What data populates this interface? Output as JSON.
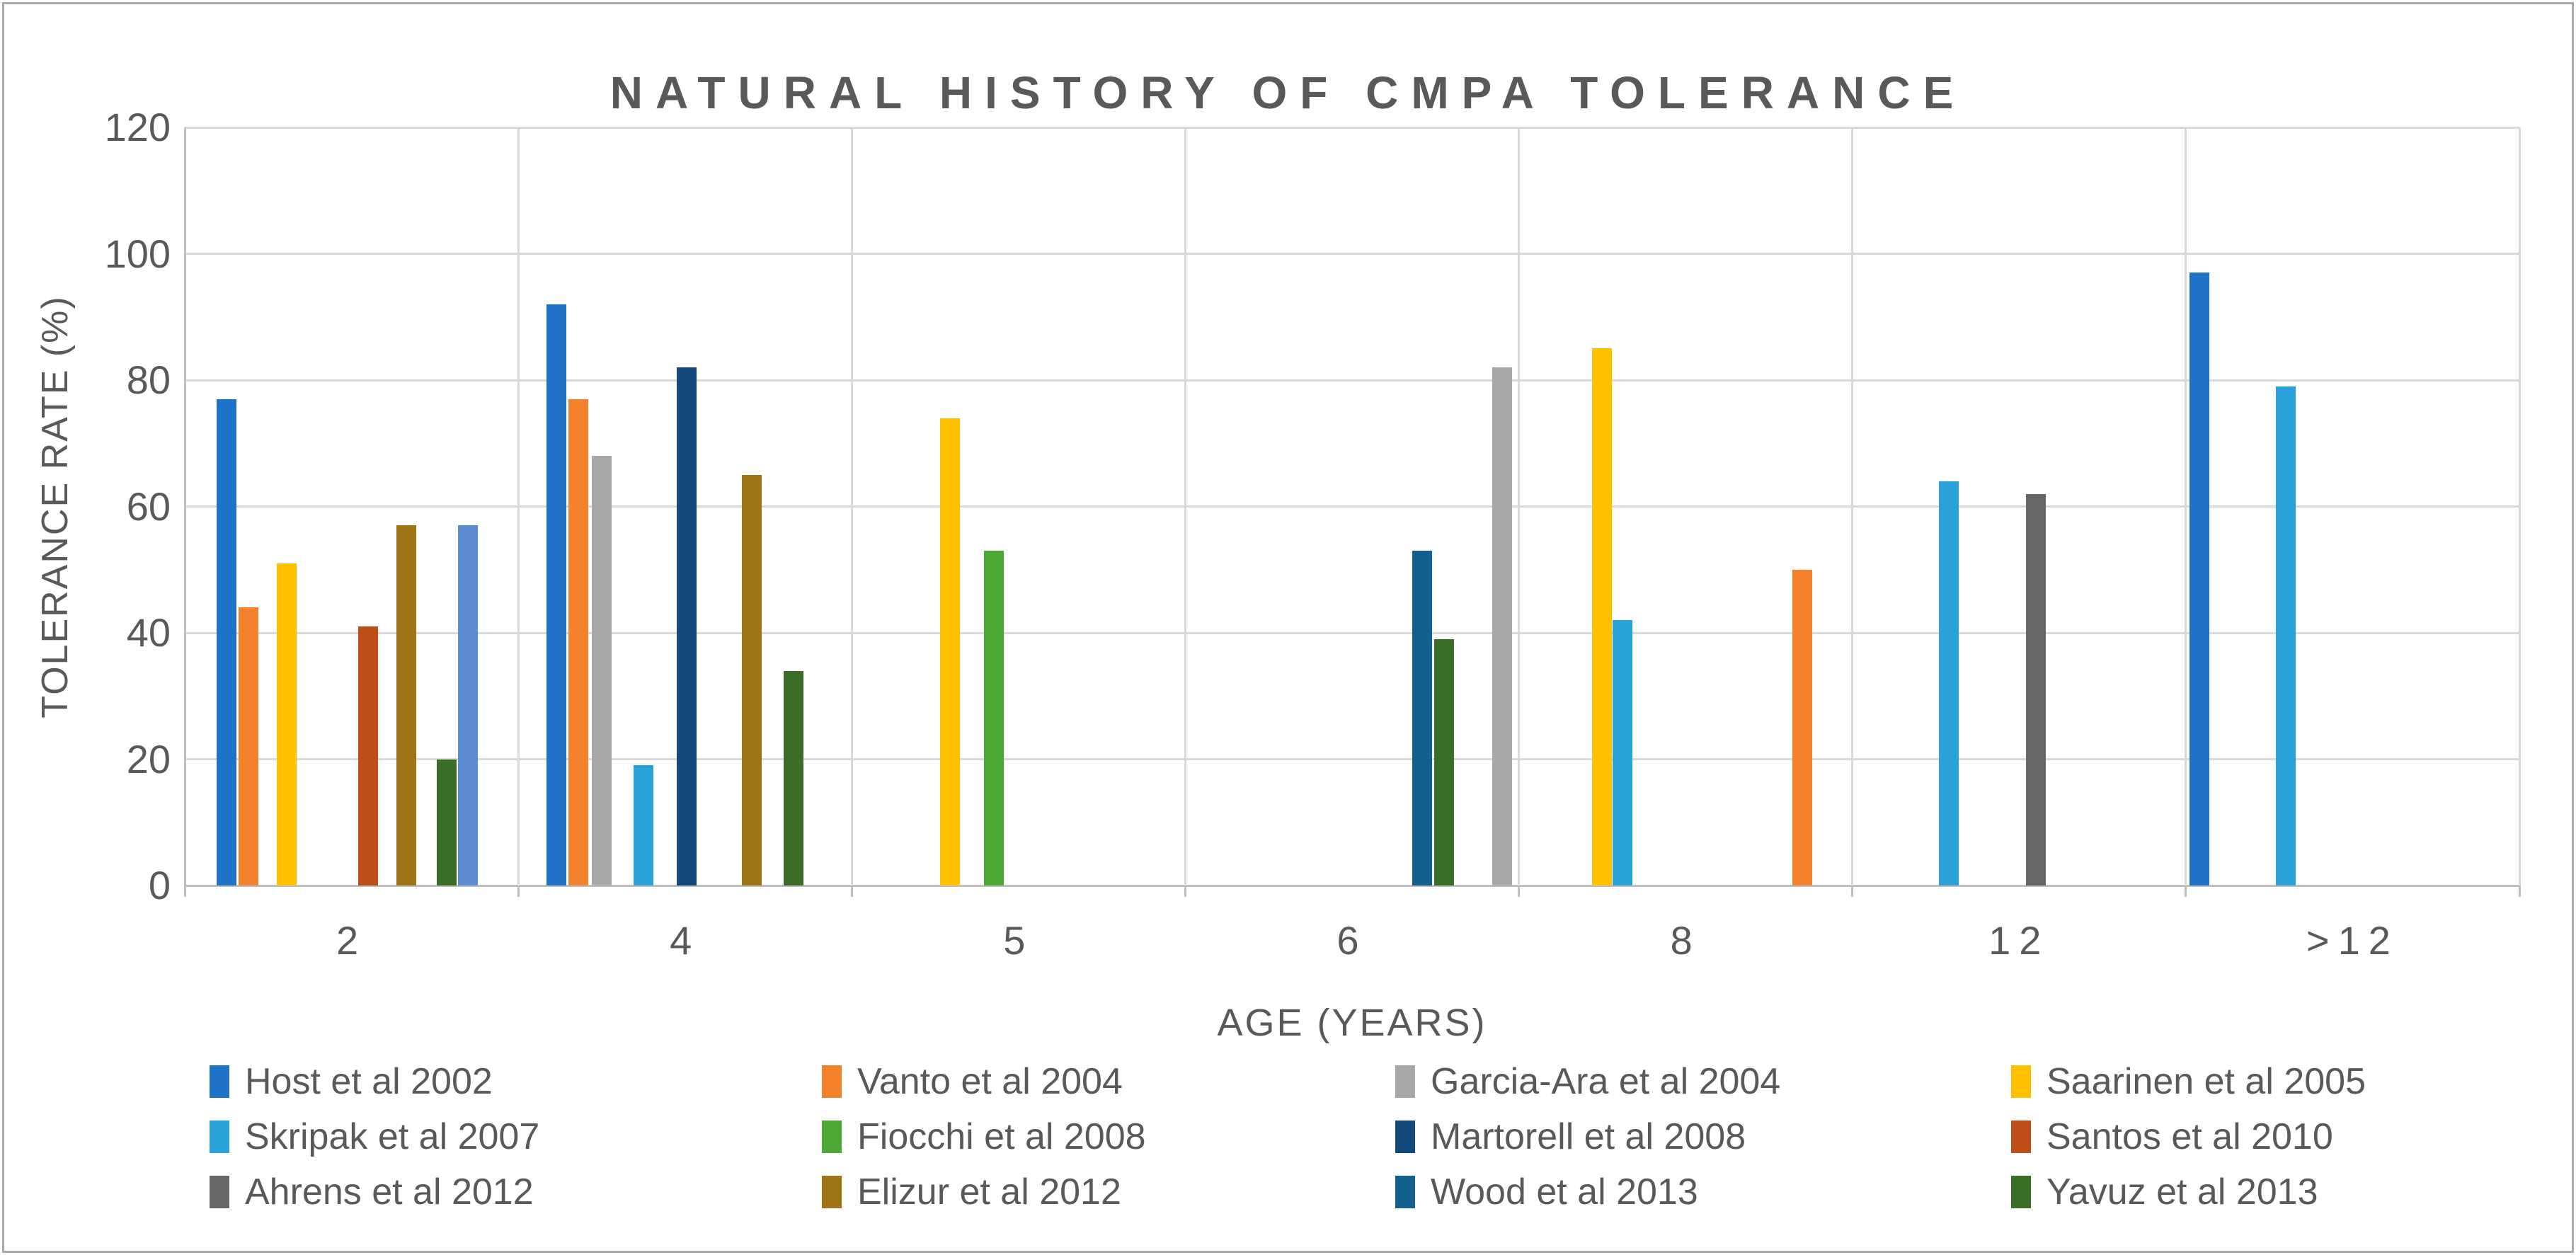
{
  "chart_data": {
    "type": "bar",
    "title": "NATURAL HISTORY OF CMPA TOLERANCE",
    "xlabel": "AGE (YEARS)",
    "ylabel": "TOLERANCE RATE (%)",
    "ylim": [
      0,
      120
    ],
    "yticks": [
      0,
      20,
      40,
      60,
      80,
      100,
      120
    ],
    "categories": [
      "2",
      "4",
      "5",
      "6",
      "8",
      "12",
      ">12"
    ],
    "grid": "on",
    "legend_position": "bottom",
    "colors": {
      "background": "#ffffff",
      "border": "#a9a9a9",
      "gridline": "#d9d9d9",
      "axis_line": "#bfbfbf",
      "text": "#595959"
    },
    "legend": [
      {
        "label": "Host et al 2002",
        "color": "#1f72c7"
      },
      {
        "label": "Vanto et al 2004",
        "color": "#f4812b"
      },
      {
        "label": "Garcia-Ara et al 2004",
        "color": "#a8a8a8"
      },
      {
        "label": "Saarinen et al 2005",
        "color": "#ffc000"
      },
      {
        "label": "Skripak et al 2007",
        "color": "#29a2da"
      },
      {
        "label": "Fiocchi et al 2008",
        "color": "#4ca834"
      },
      {
        "label": "Martorell et al 2008",
        "color": "#14497c"
      },
      {
        "label": "Santos et al 2010",
        "color": "#be4e18"
      },
      {
        "label": "Ahrens et al 2012",
        "color": "#666666"
      },
      {
        "label": "Elizur et al 2012",
        "color": "#9e7414"
      },
      {
        "label": "Wood et al 2013",
        "color": "#12608f"
      },
      {
        "label": "Yavuz et al 2013",
        "color": "#3a6e28"
      }
    ],
    "groups": [
      {
        "label": "2",
        "bars": [
          {
            "series": "Host et al 2002",
            "value": 77,
            "pos": 0.125
          },
          {
            "series": "Vanto et al 2004",
            "value": 44,
            "pos": 0.19
          },
          {
            "series": "Saarinen et al 2005",
            "value": 51,
            "pos": 0.305
          },
          {
            "series": "Santos et al 2010",
            "value": 41,
            "pos": 0.55
          },
          {
            "series": "Elizur et al 2012",
            "value": 57,
            "pos": 0.665
          },
          {
            "series": "Yavuz et al 2013",
            "value": 20,
            "pos": 0.785
          },
          {
            "series": "unlabeled",
            "value": 57,
            "pos": 0.85,
            "color": "#5d8dd1"
          }
        ]
      },
      {
        "label": "4",
        "bars": [
          {
            "series": "Host et al 2002",
            "value": 92,
            "pos": 0.115
          },
          {
            "series": "Vanto et al 2004",
            "value": 77,
            "pos": 0.18
          },
          {
            "series": "Garcia-Ara et al 2004",
            "value": 68,
            "pos": 0.25
          },
          {
            "series": "Skripak et al 2007",
            "value": 19,
            "pos": 0.375
          },
          {
            "series": "Martorell et al 2008",
            "value": 82,
            "pos": 0.505
          },
          {
            "series": "Elizur et al 2012",
            "value": 65,
            "pos": 0.7
          },
          {
            "series": "Yavuz et al 2013",
            "value": 34,
            "pos": 0.825
          }
        ]
      },
      {
        "label": "5",
        "bars": [
          {
            "series": "Saarinen et al 2005",
            "value": 74,
            "pos": 0.295
          },
          {
            "series": "Fiocchi et al 2008",
            "value": 53,
            "pos": 0.425
          }
        ]
      },
      {
        "label": "6",
        "bars": [
          {
            "series": "Wood et al 2013",
            "value": 53,
            "pos": 0.71
          },
          {
            "series": "Yavuz et al 2013",
            "value": 39,
            "pos": 0.775
          },
          {
            "series": "Garcia-Ara et al 2004",
            "value": 82,
            "pos": 0.95
          }
        ]
      },
      {
        "label": "8",
        "bars": [
          {
            "series": "Saarinen et al 2005",
            "value": 85,
            "pos": 0.25
          },
          {
            "series": "Skripak et al 2007",
            "value": 42,
            "pos": 0.31
          },
          {
            "series": "Vanto et al 2004",
            "value": 50,
            "pos": 0.85
          }
        ]
      },
      {
        "label": "12",
        "bars": [
          {
            "series": "Skripak et al 2007",
            "value": 64,
            "pos": 0.29
          },
          {
            "series": "Ahrens et al 2012",
            "value": 62,
            "pos": 0.55
          }
        ]
      },
      {
        "label": ">12",
        "bars": [
          {
            "series": "Host et al 2002",
            "value": 97,
            "pos": 0.04
          },
          {
            "series": "Skripak et al 2007",
            "value": 79,
            "pos": 0.3
          }
        ]
      }
    ]
  }
}
